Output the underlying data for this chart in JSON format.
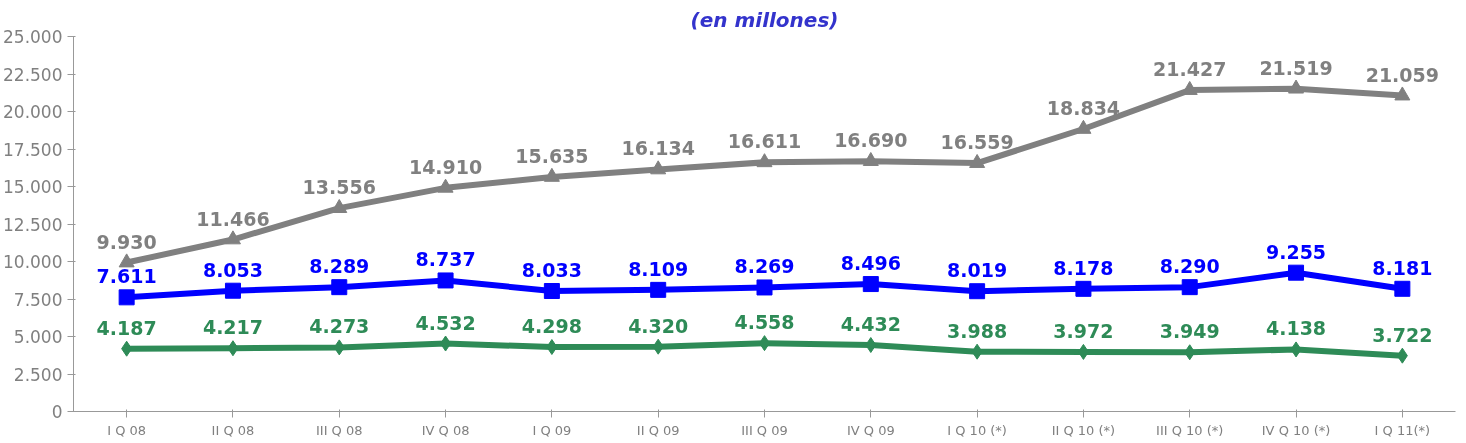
{
  "chart_data": {
    "type": "line",
    "title": "(en millones)",
    "categories": [
      "I Q 08",
      "II Q 08",
      "III Q 08",
      "IV Q 08",
      "I Q 09",
      "II Q 09",
      "III Q 09",
      "IV Q 09",
      "I Q 10 (*)",
      "II Q 10 (*)",
      "III Q 10 (*)",
      "IV Q 10 (*)",
      "I Q 11(*)"
    ],
    "series": [
      {
        "color": "#808080",
        "marker": "triangle",
        "values": [
          9930,
          11466,
          13556,
          14910,
          15635,
          16134,
          16611,
          16690,
          16559,
          18834,
          21427,
          21519,
          21059
        ],
        "value_labels": [
          "9.930",
          "11.466",
          "13.556",
          "14.910",
          "15.635",
          "16.134",
          "16.611",
          "16.690",
          "16.559",
          "18.834",
          "21.427",
          "21.519",
          "21.059"
        ]
      },
      {
        "color": "#0000ff",
        "marker": "square",
        "values": [
          7611,
          8053,
          8289,
          8737,
          8033,
          8109,
          8269,
          8496,
          8019,
          8178,
          8290,
          9255,
          8181
        ],
        "value_labels": [
          "7.611",
          "8.053",
          "8.289",
          "8.737",
          "8.033",
          "8.109",
          "8.269",
          "8.496",
          "8.019",
          "8.178",
          "8.290",
          "9.255",
          "8.181"
        ]
      },
      {
        "color": "#2e8b57",
        "marker": "diamond",
        "values": [
          4187,
          4217,
          4273,
          4532,
          4298,
          4320,
          4558,
          4432,
          3988,
          3972,
          3949,
          4138,
          3722
        ],
        "value_labels": [
          "4.187",
          "4.217",
          "4.273",
          "4.532",
          "4.298",
          "4.320",
          "4.558",
          "4.432",
          "3.988",
          "3.972",
          "3.949",
          "4.138",
          "3.722"
        ]
      }
    ],
    "ylim": [
      0,
      25000
    ],
    "yticks": [
      {
        "value": 0,
        "label": "0"
      },
      {
        "value": 2500,
        "label": "2.500"
      },
      {
        "value": 5000,
        "label": "5.000"
      },
      {
        "value": 7500,
        "label": "7.500"
      },
      {
        "value": 10000,
        "label": "10.000"
      },
      {
        "value": 12500,
        "label": "12.500"
      },
      {
        "value": 15000,
        "label": "15.000"
      },
      {
        "value": 17500,
        "label": "17.500"
      },
      {
        "value": 20000,
        "label": "20.000"
      },
      {
        "value": 22500,
        "label": "22.500"
      },
      {
        "value": 25000,
        "label": "25.000"
      }
    ],
    "grid": false,
    "legend": false,
    "line_style": "solid"
  }
}
